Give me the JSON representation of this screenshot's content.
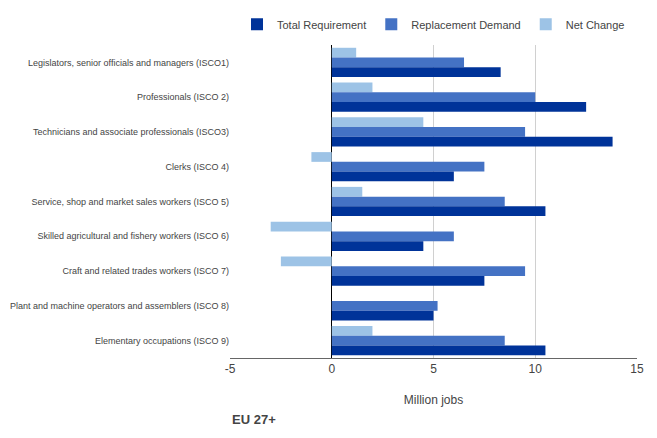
{
  "chart_data": {
    "type": "bar",
    "orientation": "horizontal",
    "categories": [
      "Legislators, senior officials and managers (ISCO1)",
      "Professionals (ISCO 2)",
      "Technicians and associate professionals (ISCO3)",
      "Clerks (ISCO 4)",
      "Service, shop and market sales workers (ISCO 5)",
      "Skilled agricultural and fishery workers (ISCO 6)",
      "Craft and related trades workers (ISCO 7)",
      "Plant and machine operators and assemblers (ISCO 8)",
      "Elementary occupations (ISCO 9)"
    ],
    "series": [
      {
        "name": "Total Requirement",
        "color": "#003399",
        "values": [
          8.3,
          12.5,
          13.8,
          6.0,
          10.5,
          4.5,
          7.5,
          5.0,
          10.5
        ]
      },
      {
        "name": "Replacement Demand",
        "color": "#4472c4",
        "values": [
          6.5,
          10.0,
          9.5,
          7.5,
          8.5,
          6.0,
          9.5,
          5.2,
          8.5
        ]
      },
      {
        "name": "Net Change",
        "color": "#9dc3e6",
        "values": [
          1.2,
          2.0,
          4.5,
          -1.0,
          1.5,
          -3.0,
          -2.5,
          0.0,
          2.0
        ]
      }
    ],
    "xlabel": "Million jobs",
    "xlim": [
      -5,
      15
    ],
    "xticks": [
      -5,
      0,
      5,
      10,
      15
    ],
    "grid": true,
    "legend": "top",
    "annotations": [
      "EU 27+"
    ]
  }
}
